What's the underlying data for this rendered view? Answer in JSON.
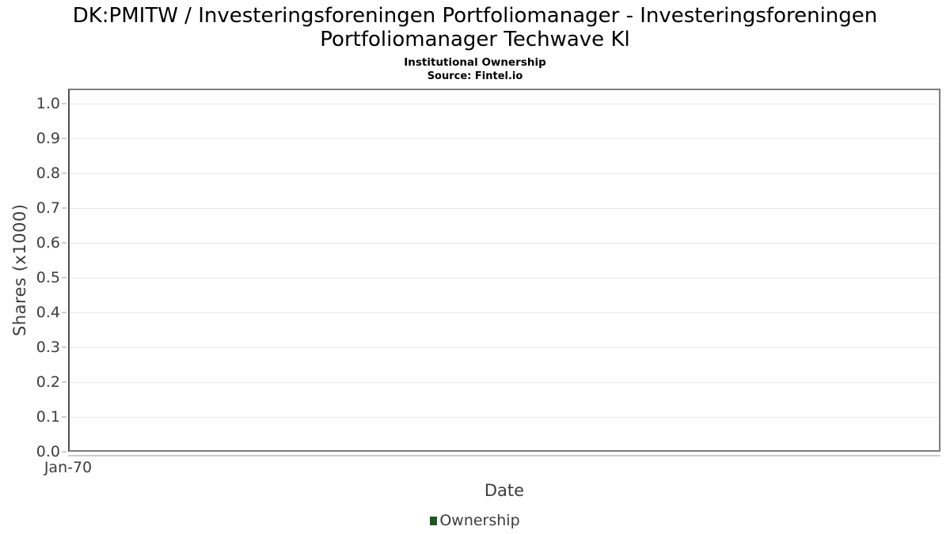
{
  "header": {
    "title_line1": "DK:PMITW / Investeringsforeningen Portfoliomanager - Investeringsforeningen",
    "title_line2": "Portfoliomanager Techwave Kl",
    "subtitle": "Institutional Ownership",
    "source": "Source: Fintel.io"
  },
  "axes": {
    "y_label": "Shares (x1000)",
    "x_label": "Date",
    "x_tick": "Jan-70"
  },
  "legend": {
    "items": [
      {
        "label": "Ownership",
        "color": "#225426"
      }
    ]
  },
  "colors": {
    "background": "#ffffff",
    "title_text": "#000000",
    "axis_text": "#3d3d3d",
    "gridline": "#e7e7e7",
    "plot_border": "#7d7d7d",
    "y_axis_line": "#4f4f4f",
    "x_axis_underline": "#cccccc",
    "tick_mark": "#cfcfcf",
    "series_ownership": "#225426"
  },
  "chart_data": {
    "type": "line",
    "title": "DK:PMITW / Investeringsforeningen Portfoliomanager - Investeringsforeningen Portfoliomanager Techwave Kl",
    "subtitle": "Institutional Ownership",
    "source": "Source: Fintel.io",
    "xlabel": "Date",
    "ylabel": "Shares (x1000)",
    "x_ticks": [
      "Jan-70"
    ],
    "y_ticks": [
      "0.0",
      "0.1",
      "0.2",
      "0.3",
      "0.4",
      "0.5",
      "0.6",
      "0.7",
      "0.8",
      "0.9",
      "1.0"
    ],
    "ylim": [
      0,
      1.043
    ],
    "grid": true,
    "legend_position": "bottom",
    "series": [
      {
        "name": "Ownership",
        "color": "#225426",
        "x": [],
        "values": []
      }
    ],
    "note_visible_data_points": 0
  }
}
